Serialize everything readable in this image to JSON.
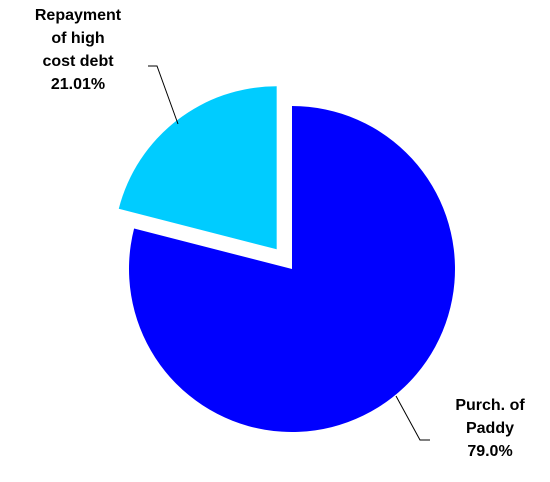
{
  "chart_data": {
    "type": "pie",
    "categories": [
      "Purch. of Paddy",
      "Repayment of high cost debt"
    ],
    "values": [
      79,
      21.01
    ],
    "value_labels": [
      "79.0%",
      "21.01%"
    ],
    "colors": [
      "#0000ff",
      "#00ccff"
    ]
  }
}
